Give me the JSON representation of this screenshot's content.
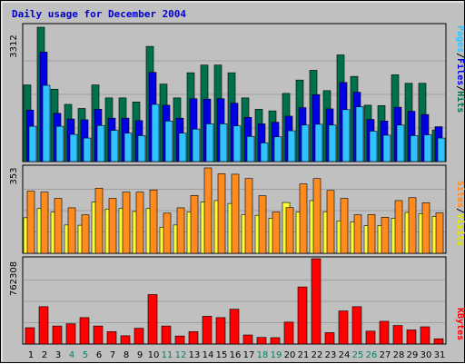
{
  "title": "Daily usage for December 2004",
  "colors": {
    "title": "#0000cc",
    "hits": "#006f4d",
    "files": "#0000e6",
    "pages": "#2fc2ff",
    "visits": "#ffff33",
    "sites": "#ff8a1e",
    "kbytes": "#ff0000",
    "weekday_label": "#000000",
    "weekend_label": "#00806a",
    "panel_bg": "#c0c0c0",
    "plot_bg": "#c0c0c0"
  },
  "legend": {
    "panel1": [
      "Pages",
      "/",
      "Files",
      "/",
      "Hits"
    ],
    "panel2": [
      "Sites",
      "/",
      "Visits"
    ],
    "panel3": [
      "KBytes"
    ]
  },
  "chart_data": [
    {
      "type": "bar",
      "title": "Daily usage for December 2004",
      "ymax_label": "3312",
      "ylim": [
        0,
        3312
      ],
      "categories": [
        "1",
        "2",
        "3",
        "4",
        "5",
        "6",
        "7",
        "8",
        "9",
        "10",
        "11",
        "12",
        "13",
        "14",
        "15",
        "16",
        "17",
        "18",
        "19",
        "20",
        "21",
        "22",
        "23",
        "24",
        "25",
        "26",
        "27",
        "28",
        "29",
        "30",
        "31"
      ],
      "weekend_days": [
        "4",
        "5",
        "11",
        "12",
        "18",
        "19",
        "25",
        "26"
      ],
      "series": [
        {
          "name": "Hits",
          "values": [
            1890,
            3312,
            1785,
            1410,
            1310,
            1890,
            1570,
            1570,
            1470,
            2840,
            1910,
            1570,
            2190,
            2380,
            2380,
            2190,
            1570,
            1290,
            1250,
            1680,
            2010,
            2250,
            1750,
            2630,
            2100,
            1390,
            1380,
            2140,
            1930,
            1930,
            780
          ]
        },
        {
          "name": "Files",
          "values": [
            1270,
            2700,
            1190,
            1050,
            1030,
            1290,
            1070,
            1070,
            1010,
            2200,
            1390,
            1070,
            1550,
            1540,
            1550,
            1440,
            1090,
            930,
            970,
            1120,
            1330,
            1650,
            1300,
            1950,
            1710,
            1040,
            1000,
            1340,
            1240,
            1160,
            860
          ]
        },
        {
          "name": "Pages",
          "values": [
            870,
            1880,
            870,
            670,
            580,
            890,
            770,
            700,
            640,
            1410,
            1000,
            700,
            800,
            930,
            930,
            880,
            620,
            460,
            610,
            760,
            900,
            920,
            900,
            1280,
            1350,
            750,
            650,
            900,
            640,
            660,
            580
          ]
        }
      ]
    },
    {
      "type": "bar",
      "ymax_label": "353",
      "ylim": [
        0,
        353
      ],
      "categories": [
        "1",
        "2",
        "3",
        "4",
        "5",
        "6",
        "7",
        "8",
        "9",
        "10",
        "11",
        "12",
        "13",
        "14",
        "15",
        "16",
        "17",
        "18",
        "19",
        "20",
        "21",
        "22",
        "23",
        "24",
        "25",
        "26",
        "27",
        "28",
        "29",
        "30",
        "31"
      ],
      "series": [
        {
          "name": "Sites",
          "values": [
            257,
            253,
            227,
            188,
            159,
            269,
            227,
            253,
            253,
            262,
            166,
            188,
            239,
            353,
            329,
            327,
            309,
            238,
            171,
            189,
            287,
            309,
            260,
            227,
            159,
            160,
            149,
            218,
            230,
            209,
            167
          ]
        },
        {
          "name": "Visits",
          "values": [
            147,
            185,
            170,
            117,
            116,
            212,
            183,
            185,
            173,
            185,
            108,
            117,
            171,
            212,
            218,
            206,
            160,
            157,
            145,
            210,
            170,
            218,
            172,
            134,
            130,
            114,
            115,
            145,
            169,
            164,
            152
          ]
        }
      ]
    },
    {
      "type": "bar",
      "ymax_label": "762308",
      "ylim": [
        0,
        762308
      ],
      "categories": [
        "1",
        "2",
        "3",
        "4",
        "5",
        "6",
        "7",
        "8",
        "9",
        "10",
        "11",
        "12",
        "13",
        "14",
        "15",
        "16",
        "17",
        "18",
        "19",
        "20",
        "21",
        "22",
        "23",
        "24",
        "25",
        "26",
        "27",
        "28",
        "29",
        "30",
        "31"
      ],
      "series": [
        {
          "name": "KBytes",
          "values": [
            146000,
            334000,
            161000,
            181000,
            236000,
            161000,
            111000,
            74000,
            141000,
            442000,
            161000,
            72000,
            111000,
            248000,
            236000,
            311000,
            81000,
            59000,
            57000,
            196000,
            510000,
            762308,
            102000,
            296000,
            334000,
            115000,
            203000,
            166000,
            126000,
            154000,
            47000
          ]
        }
      ]
    }
  ]
}
